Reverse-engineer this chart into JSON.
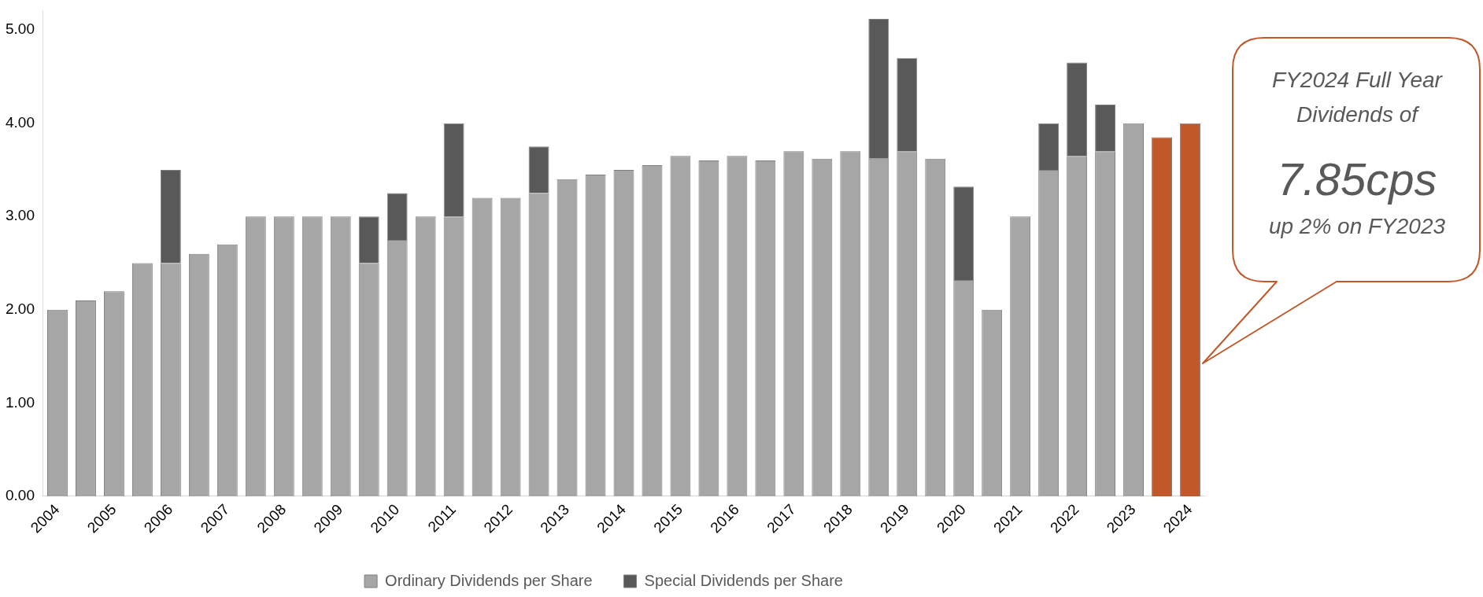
{
  "chart_data": {
    "type": "bar",
    "stacked": true,
    "legend": "bottom",
    "grid": false,
    "categories": [
      "2004",
      null,
      "2005",
      null,
      "2006",
      null,
      "2007",
      null,
      "2008",
      null,
      "2009",
      null,
      "2010",
      null,
      "2011",
      null,
      "2012",
      null,
      "2013",
      null,
      "2014",
      null,
      "2015",
      null,
      "2016",
      null,
      "2017",
      null,
      "2018",
      null,
      "2019",
      null,
      "2020",
      null,
      "2021",
      null,
      "2022",
      null,
      "2023",
      null,
      "2024"
    ],
    "ylim": [
      0,
      5.2
    ],
    "yticks": [
      {
        "value": 0,
        "label": "0.00"
      },
      {
        "value": 1,
        "label": "1.00"
      },
      {
        "value": 2,
        "label": "2.00"
      },
      {
        "value": 3,
        "label": "3.00"
      },
      {
        "value": 4,
        "label": "4.00"
      },
      {
        "value": 5,
        "label": "5.00"
      }
    ],
    "series": [
      {
        "name": "Ordinary Dividends per Share",
        "color": "#a6a6a6",
        "colors": [
          "#a6a6a6",
          "#a6a6a6",
          "#a6a6a6",
          "#a6a6a6",
          "#a6a6a6",
          "#a6a6a6",
          "#a6a6a6",
          "#a6a6a6",
          "#a6a6a6",
          "#a6a6a6",
          "#a6a6a6",
          "#a6a6a6",
          "#a6a6a6",
          "#a6a6a6",
          "#a6a6a6",
          "#a6a6a6",
          "#a6a6a6",
          "#a6a6a6",
          "#a6a6a6",
          "#a6a6a6",
          "#a6a6a6",
          "#a6a6a6",
          "#a6a6a6",
          "#a6a6a6",
          "#a6a6a6",
          "#a6a6a6",
          "#a6a6a6",
          "#a6a6a6",
          "#a6a6a6",
          "#a6a6a6",
          "#a6a6a6",
          "#a6a6a6",
          "#a6a6a6",
          "#a6a6a6",
          "#a6a6a6",
          "#a6a6a6",
          "#a6a6a6",
          "#a6a6a6",
          "#a6a6a6",
          "#c0582a",
          "#c0582a"
        ],
        "values": [
          2.0,
          2.1,
          2.2,
          2.5,
          2.5,
          2.6,
          2.7,
          3.0,
          3.0,
          3.0,
          3.0,
          2.5,
          2.75,
          3.0,
          3.0,
          3.2,
          3.2,
          3.25,
          3.4,
          3.45,
          3.5,
          3.55,
          3.65,
          3.6,
          3.65,
          3.6,
          3.7,
          3.62,
          3.7,
          3.62,
          3.7,
          3.62,
          2.32,
          2.0,
          3.0,
          3.5,
          3.65,
          3.7,
          4.0,
          3.85,
          4.0
        ]
      },
      {
        "name": "Special Dividends per Share",
        "color": "#595959",
        "values": [
          null,
          null,
          null,
          null,
          1.0,
          null,
          null,
          null,
          null,
          null,
          null,
          0.5,
          0.5,
          null,
          1.0,
          null,
          null,
          0.5,
          null,
          null,
          null,
          null,
          null,
          null,
          null,
          null,
          null,
          null,
          null,
          1.5,
          1.0,
          null,
          1.0,
          null,
          null,
          0.5,
          1.0,
          0.5,
          null,
          null,
          null
        ]
      }
    ],
    "annotations": [
      "FY2024 Full Year Dividends of",
      "7.85cps",
      "up 2% on FY2023"
    ]
  }
}
